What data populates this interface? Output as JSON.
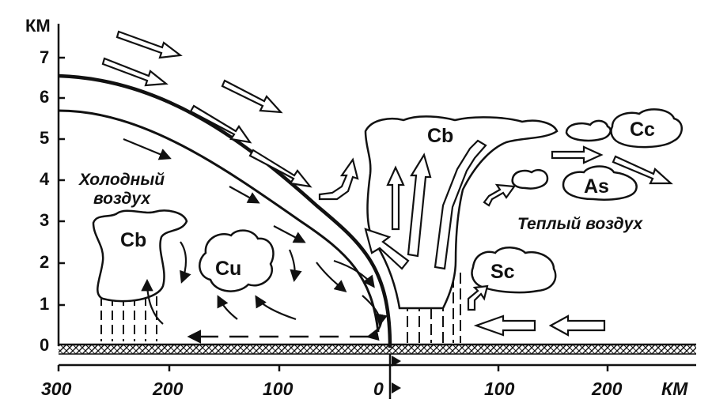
{
  "axes": {
    "y_unit": "КМ",
    "y_ticks": [
      "0",
      "1",
      "2",
      "3",
      "4",
      "5",
      "6",
      "7"
    ],
    "x_unit": "КМ",
    "x_ticks": [
      "300",
      "200",
      "100",
      "0",
      "100",
      "200"
    ]
  },
  "labels": {
    "cold_air_line1": "Холодный",
    "cold_air_line2": "воздух",
    "warm_air": "Теплый воздух"
  },
  "clouds": {
    "cb_left": "Cb",
    "cu": "Cu",
    "cb_main": "Cb",
    "cc": "Cc",
    "as": "As",
    "sc": "Sc"
  }
}
